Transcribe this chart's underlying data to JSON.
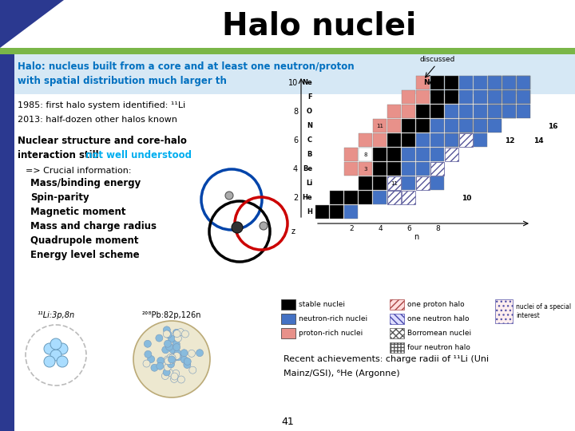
{
  "title": "Halo nuclei",
  "title_fontsize": 28,
  "title_color": "#000000",
  "bg_color": "#ffffff",
  "blue_bar_color": "#2B3990",
  "green_bar_color": "#7AB648",
  "blue_text_color": "#0070C0",
  "cyan_text_color": "#00AEEF",
  "sidebar_blue": "#2B3990",
  "halo_def_line1": "Halo: nucleus built from a core and at least one neutron/proton",
  "halo_def_line2": "with spatial distribution much larger th",
  "year1985": "1985: first halo system identified: ¹¹Li",
  "year2013": "2013: half-dozen other halos known",
  "nuclear_line1": "Nuclear structure and core-halo",
  "nuclear_line2": "interaction still ",
  "nuclear_highlight": "not well understood",
  "crucial": "=> Crucial information:",
  "items": [
    "Mass/binding energy",
    "Spin-parity",
    "Magnetic moment",
    "Mass and charge radius",
    "Quadrupole moment",
    "Energy level scheme"
  ],
  "li_label": "¹¹Li:3p,8n",
  "pb_label": "²°⁸Pb:82p,126n",
  "recent_line1": "Recent achievements: charge radii of ¹¹Li (Uni",
  "recent_line2": "Mainz/GSI), ⁶He (Argonne)",
  "page_num": "41",
  "discussed": "discussed",
  "legend_stable": "stable nuclei",
  "legend_neutron_rich": "neutron-rich nuclei",
  "legend_proton_rich": "proton-rich nuclei",
  "legend_one_proton": "one proton halo",
  "legend_one_neutron": "one neutron halo",
  "legend_borromean": "Borromean nuclei",
  "legend_four_neutron": "four neutron halo",
  "legend_special": "nuclei of a special\ninterest"
}
